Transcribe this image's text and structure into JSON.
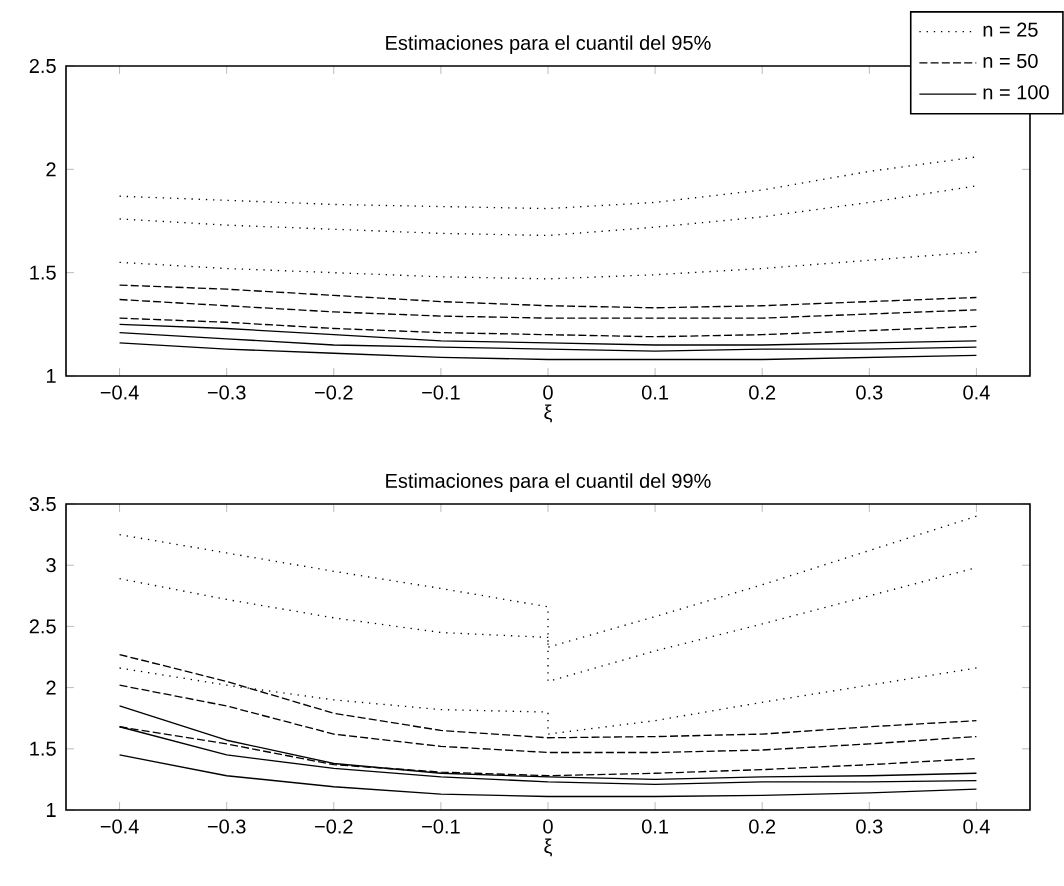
{
  "chart_data": [
    {
      "type": "line",
      "title": "Estimaciones para el cuantil del 95%",
      "xlabel": "ξ",
      "legend": "top right",
      "x": [
        -0.4,
        -0.3,
        -0.2,
        -0.1,
        0,
        0.1,
        0.2,
        0.3,
        0.4
      ],
      "xlim": [
        -0.45,
        0.45
      ],
      "ylim": [
        1,
        2.5
      ],
      "xticks": [
        {
          "value": -0.4,
          "label": "−0.4"
        },
        {
          "value": -0.3,
          "label": "−0.3"
        },
        {
          "value": -0.2,
          "label": "−0.2"
        },
        {
          "value": -0.1,
          "label": "−0.1"
        },
        0,
        0.1,
        0.2,
        0.3,
        0.4
      ],
      "yticks": [
        1,
        1.5,
        2,
        2.5
      ],
      "series": [
        {
          "name": "n = 25",
          "color": "#000000",
          "line_style": "dotted",
          "values": [
            1.87,
            1.85,
            1.83,
            1.82,
            1.81,
            1.84,
            1.9,
            1.99,
            2.06
          ]
        },
        {
          "color": "#000000",
          "line_style": "dotted",
          "values": [
            1.76,
            1.73,
            1.71,
            1.69,
            1.68,
            1.72,
            1.77,
            1.84,
            1.92
          ]
        },
        {
          "color": "#000000",
          "line_style": "dotted",
          "values": [
            1.55,
            1.52,
            1.5,
            1.48,
            1.47,
            1.49,
            1.52,
            1.56,
            1.6
          ]
        },
        {
          "name": "n = 50",
          "color": "#000000",
          "line_style": "dashed",
          "values": [
            1.44,
            1.42,
            1.39,
            1.36,
            1.34,
            1.33,
            1.34,
            1.36,
            1.38
          ]
        },
        {
          "color": "#000000",
          "line_style": "dashed",
          "values": [
            1.37,
            1.34,
            1.31,
            1.29,
            1.28,
            1.28,
            1.28,
            1.3,
            1.32
          ]
        },
        {
          "color": "#000000",
          "line_style": "dashed",
          "values": [
            1.28,
            1.26,
            1.23,
            1.21,
            1.2,
            1.19,
            1.2,
            1.22,
            1.24
          ]
        },
        {
          "name": "n = 100",
          "color": "#000000",
          "line_style": "solid",
          "values": [
            1.25,
            1.23,
            1.2,
            1.17,
            1.16,
            1.15,
            1.15,
            1.16,
            1.17
          ]
        },
        {
          "color": "#000000",
          "line_style": "solid",
          "values": [
            1.21,
            1.18,
            1.15,
            1.14,
            1.13,
            1.12,
            1.13,
            1.13,
            1.14
          ]
        },
        {
          "color": "#000000",
          "line_style": "solid",
          "values": [
            1.16,
            1.13,
            1.11,
            1.09,
            1.08,
            1.08,
            1.08,
            1.09,
            1.1
          ]
        }
      ]
    },
    {
      "type": "line",
      "title": "Estimaciones para el cuantil del 99%",
      "xlabel": "ξ",
      "x": [
        -0.4,
        -0.3,
        -0.2,
        -0.1,
        0,
        0.1,
        0.2,
        0.3,
        0.4
      ],
      "xlim": [
        -0.45,
        0.45
      ],
      "ylim": [
        1,
        3.5
      ],
      "xticks": [
        {
          "value": -0.4,
          "label": "−0.4"
        },
        {
          "value": -0.3,
          "label": "−0.3"
        },
        {
          "value": -0.2,
          "label": "−0.2"
        },
        {
          "value": -0.1,
          "label": "−0.1"
        },
        0,
        0.1,
        0.2,
        0.3,
        0.4
      ],
      "yticks": [
        1,
        1.5,
        2,
        2.5,
        3,
        3.5
      ],
      "series": [
        {
          "color": "#000000",
          "line_style": "dotted",
          "x": [
            -0.4,
            -0.3,
            -0.2,
            -0.1,
            0,
            0,
            0.1,
            0.2,
            0.3,
            0.4
          ],
          "values": [
            3.25,
            3.1,
            2.95,
            2.81,
            2.66,
            2.33,
            2.58,
            2.84,
            3.12,
            3.4
          ]
        },
        {
          "color": "#000000",
          "line_style": "dotted",
          "x": [
            -0.4,
            -0.3,
            -0.2,
            -0.1,
            0,
            0,
            0.1,
            0.2,
            0.3,
            0.4
          ],
          "values": [
            2.89,
            2.72,
            2.57,
            2.45,
            2.41,
            2.05,
            2.3,
            2.52,
            2.75,
            2.98
          ]
        },
        {
          "color": "#000000",
          "line_style": "dotted",
          "x": [
            -0.4,
            -0.3,
            -0.2,
            -0.1,
            0,
            0,
            0.1,
            0.2,
            0.3,
            0.4
          ],
          "values": [
            2.16,
            2.02,
            1.9,
            1.82,
            1.8,
            1.62,
            1.73,
            1.88,
            2.02,
            2.16
          ]
        },
        {
          "color": "#000000",
          "line_style": "dashed",
          "values": [
            2.27,
            2.05,
            1.79,
            1.65,
            1.59,
            1.6,
            1.62,
            1.68,
            1.73
          ]
        },
        {
          "color": "#000000",
          "line_style": "dashed",
          "values": [
            2.02,
            1.85,
            1.62,
            1.52,
            1.47,
            1.47,
            1.49,
            1.54,
            1.6
          ]
        },
        {
          "color": "#000000",
          "line_style": "dashed",
          "values": [
            1.68,
            1.54,
            1.37,
            1.31,
            1.28,
            1.3,
            1.33,
            1.37,
            1.42
          ]
        },
        {
          "color": "#000000",
          "line_style": "solid",
          "values": [
            1.85,
            1.57,
            1.38,
            1.3,
            1.27,
            1.25,
            1.27,
            1.28,
            1.3
          ]
        },
        {
          "color": "#000000",
          "line_style": "solid",
          "values": [
            1.68,
            1.45,
            1.34,
            1.27,
            1.23,
            1.21,
            1.23,
            1.23,
            1.24
          ]
        },
        {
          "color": "#000000",
          "line_style": "solid",
          "values": [
            1.45,
            1.28,
            1.19,
            1.13,
            1.11,
            1.11,
            1.12,
            1.14,
            1.17
          ]
        }
      ]
    }
  ]
}
